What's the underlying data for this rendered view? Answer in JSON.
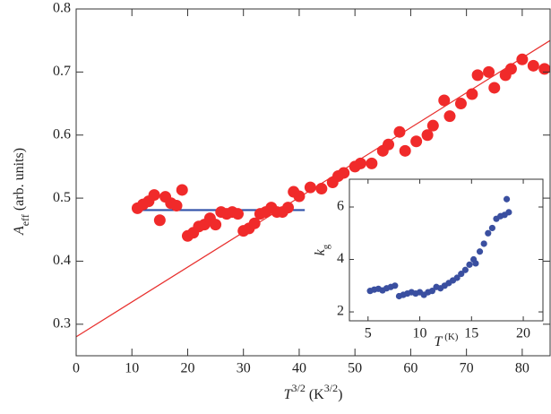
{
  "chart_data": [
    {
      "type": "scatter",
      "xlabel_parts": [
        "T",
        "3/2",
        " (K",
        "3/2",
        ")"
      ],
      "ylabel_parts": [
        "A",
        "eff",
        " (arb. units)"
      ],
      "xlim": [
        0,
        85
      ],
      "ylim": [
        0.25,
        0.8
      ],
      "xticks": [
        0,
        10,
        20,
        30,
        40,
        50,
        60,
        70,
        80
      ],
      "yticks": [
        0.3,
        0.4,
        0.5,
        0.6,
        0.7,
        0.8
      ],
      "color": "#f02a2a",
      "x": [
        11,
        12,
        13,
        14,
        15,
        16,
        17,
        18,
        19,
        20,
        21,
        22,
        23,
        24,
        25,
        26,
        27,
        28,
        29,
        30,
        31,
        32,
        33,
        34,
        35,
        36,
        37,
        38,
        39,
        40,
        42,
        44,
        46,
        47,
        48,
        50,
        51,
        53,
        55,
        56,
        58,
        59,
        61,
        63,
        64,
        66,
        67,
        69,
        71,
        72,
        74,
        75,
        77,
        78,
        80,
        82,
        84
      ],
      "values": [
        0.484,
        0.49,
        0.495,
        0.505,
        0.465,
        0.502,
        0.492,
        0.488,
        0.513,
        0.44,
        0.445,
        0.455,
        0.458,
        0.468,
        0.458,
        0.478,
        0.475,
        0.478,
        0.475,
        0.448,
        0.452,
        0.46,
        0.475,
        0.478,
        0.485,
        0.478,
        0.478,
        0.485,
        0.51,
        0.503,
        0.517,
        0.515,
        0.525,
        0.535,
        0.54,
        0.55,
        0.555,
        0.555,
        0.575,
        0.585,
        0.605,
        0.575,
        0.59,
        0.6,
        0.615,
        0.655,
        0.63,
        0.65,
        0.665,
        0.695,
        0.7,
        0.675,
        0.695,
        0.705,
        0.72,
        0.71,
        0.705
      ],
      "lines": [
        {
          "color": "#e8302e",
          "x": [
            0,
            85
          ],
          "y": [
            0.28,
            0.75
          ]
        },
        {
          "color": "#3050a8",
          "x": [
            11,
            41
          ],
          "y": [
            0.481,
            0.481
          ]
        }
      ]
    },
    {
      "type": "scatter",
      "xlabel_parts": [
        "T",
        " (K)"
      ],
      "ylabel_parts": [
        "k",
        "g"
      ],
      "xlim": [
        3.2,
        21.9
      ],
      "ylim": [
        1.66,
        7.06
      ],
      "xticks": [
        5,
        10,
        15,
        20
      ],
      "yticks": [
        2,
        4,
        6
      ],
      "color": "#3a4fa0",
      "x": [
        5.2,
        5.6,
        6,
        6.4,
        6.8,
        7.2,
        7.6,
        8,
        8.4,
        8.8,
        9.2,
        9.6,
        10,
        10.4,
        10.8,
        11.2,
        11.6,
        12,
        12.4,
        12.8,
        13.2,
        13.6,
        14,
        14.4,
        14.8,
        15.2,
        15.4,
        15.8,
        16.2,
        16.6,
        17,
        17.4,
        17.8,
        18.2,
        18.4,
        18.6
      ],
      "values": [
        2.8,
        2.85,
        2.88,
        2.82,
        2.9,
        2.95,
        3.0,
        2.6,
        2.65,
        2.7,
        2.75,
        2.7,
        2.75,
        2.65,
        2.75,
        2.8,
        2.95,
        2.9,
        3.0,
        3.1,
        3.2,
        3.3,
        3.45,
        3.6,
        3.8,
        4.0,
        3.85,
        4.3,
        4.6,
        5.0,
        5.2,
        5.55,
        5.65,
        5.7,
        6.3,
        5.8
      ]
    }
  ]
}
